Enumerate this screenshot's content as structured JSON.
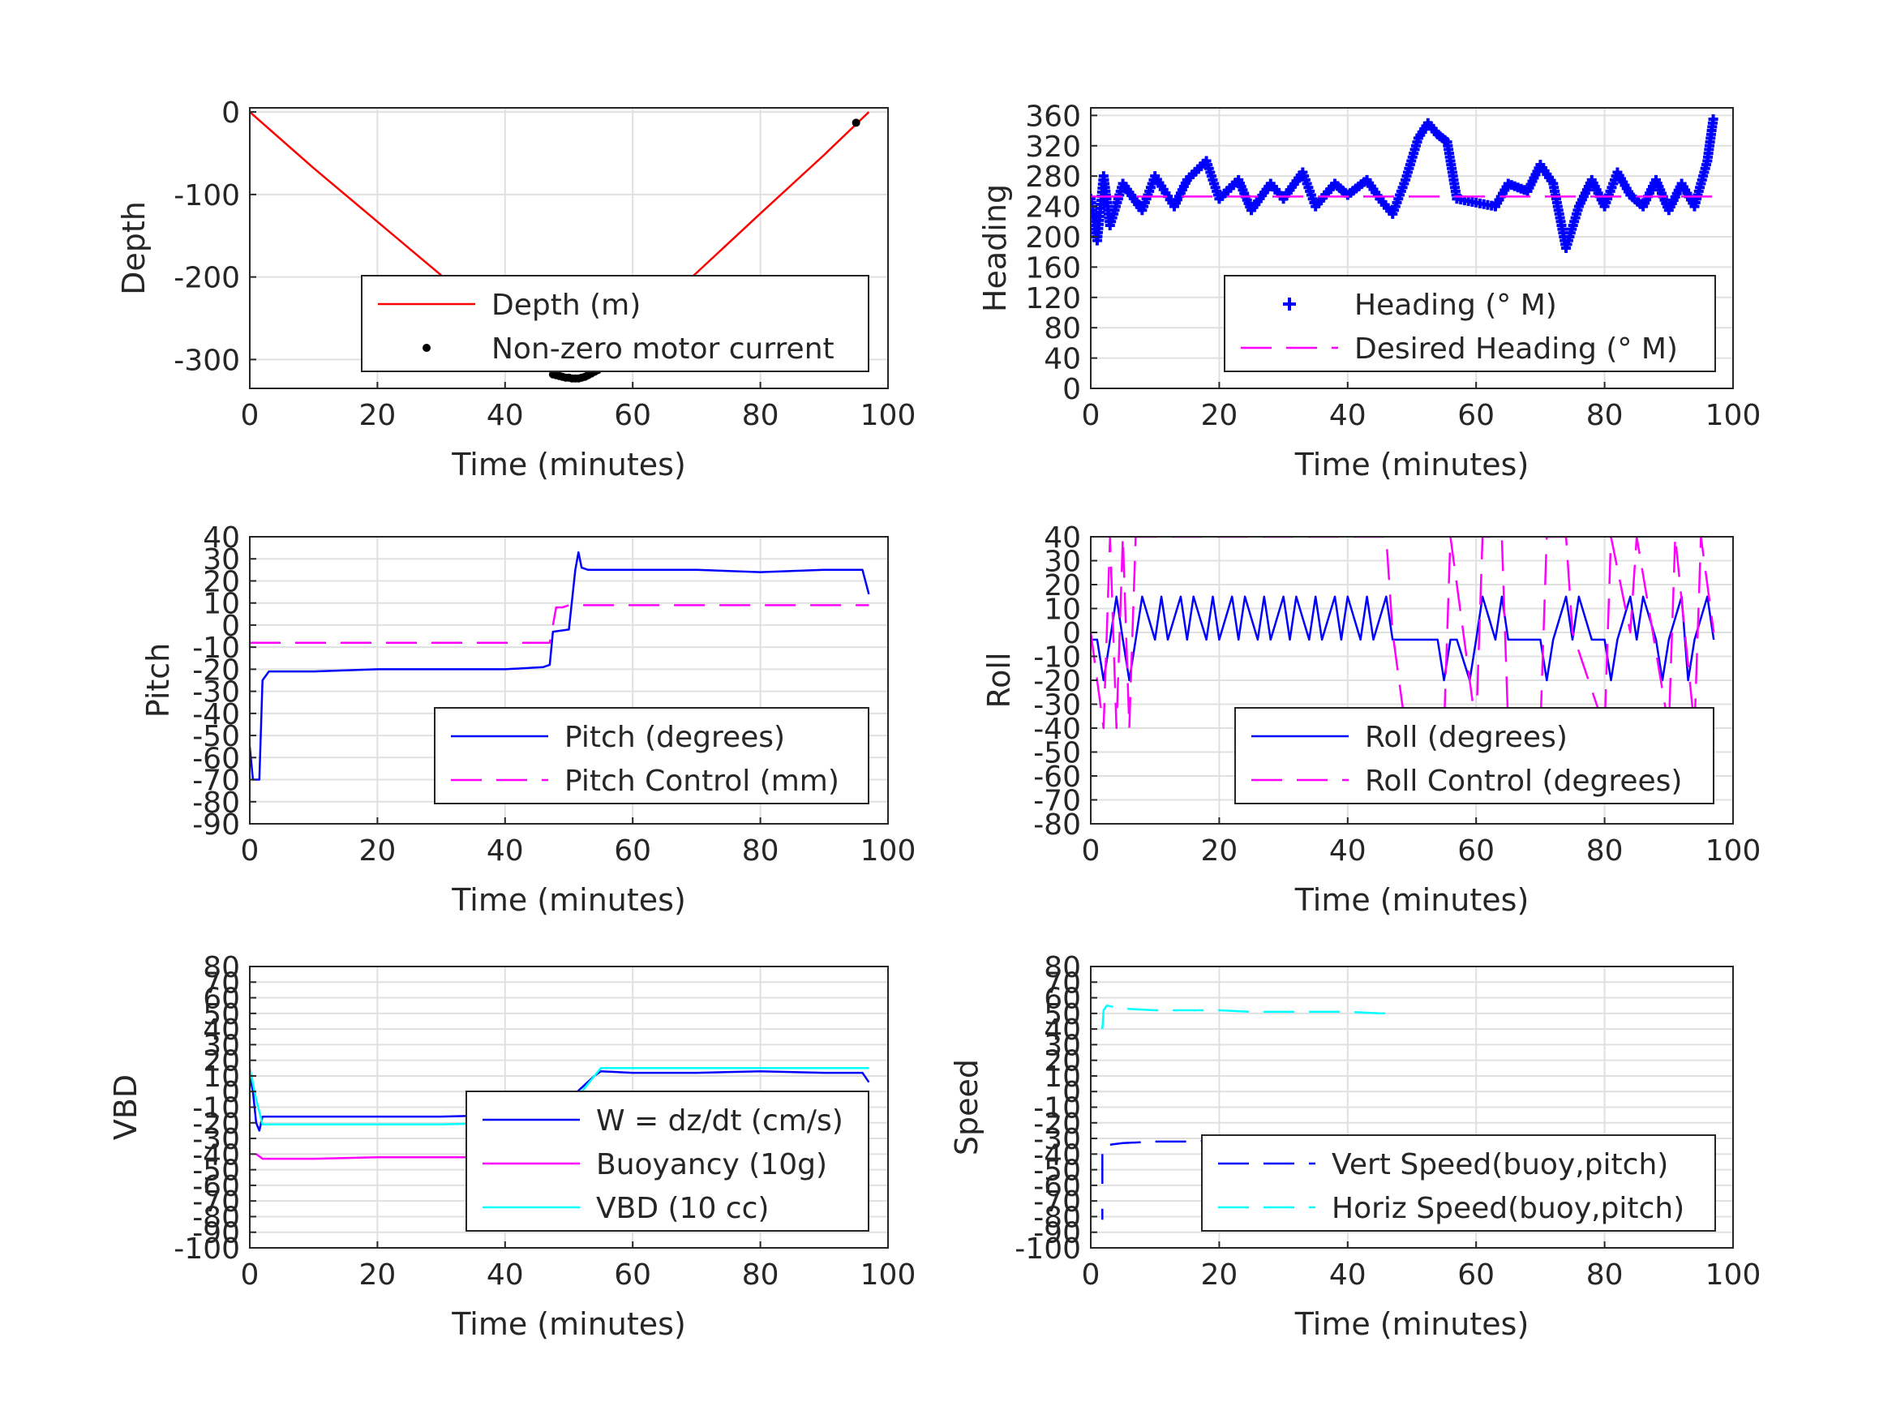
{
  "chart_data": [
    {
      "id": "depth",
      "type": "line",
      "xlabel": "Time (minutes)",
      "ylabel": "Depth",
      "xlim": [
        0,
        100
      ],
      "ylim": [
        -335,
        5
      ],
      "xticks": [
        0,
        20,
        40,
        60,
        80,
        100
      ],
      "yticks": [
        0,
        -100,
        -200,
        -300
      ],
      "grid": true,
      "legend": {
        "placement": "bottom-right",
        "entries": [
          "Depth (m)",
          "Non-zero motor current"
        ]
      },
      "series": [
        {
          "name": "Depth (m)",
          "style": "line",
          "color": "#ff0000",
          "x": [
            0,
            10,
            20,
            30,
            40,
            48,
            50,
            52,
            54,
            60,
            70,
            80,
            90,
            97
          ],
          "y": [
            0,
            -68,
            -133,
            -198,
            -262,
            -315,
            -320,
            -320,
            -312,
            -265,
            -195,
            -123,
            -52,
            0
          ]
        },
        {
          "name": "Non-zero motor current",
          "style": "dot",
          "color": "#000000",
          "x": [
            47.5,
            48,
            48.5,
            49,
            49.5,
            50,
            50.5,
            51,
            51.5,
            52,
            52.5,
            53,
            53.5,
            54,
            54.5,
            95
          ],
          "y": [
            -318,
            -319,
            -320,
            -321,
            -322,
            -322,
            -323,
            -323,
            -323,
            -322,
            -321,
            -319,
            -317,
            -315,
            -313,
            -13
          ]
        }
      ]
    },
    {
      "id": "heading",
      "type": "scatter",
      "xlabel": "Time (minutes)",
      "ylabel": "Heading",
      "xlim": [
        0,
        100
      ],
      "ylim": [
        0,
        370
      ],
      "xticks": [
        0,
        20,
        40,
        60,
        80,
        100
      ],
      "yticks": [
        0,
        40,
        80,
        120,
        160,
        200,
        240,
        280,
        320,
        360
      ],
      "grid": true,
      "legend": {
        "placement": "bottom-right",
        "entries": [
          "Heading (° M)",
          "Desired Heading (° M)"
        ]
      },
      "series": [
        {
          "name": "Heading (° M)",
          "style": "plus",
          "color": "#0000ff",
          "x": [
            0,
            1,
            2,
            3,
            5,
            8,
            10,
            13,
            15,
            18,
            20,
            23,
            25,
            28,
            30,
            33,
            35,
            38,
            40,
            43,
            45,
            47,
            49,
            51,
            52.5,
            54,
            55.5,
            57,
            60,
            63,
            65,
            68,
            70,
            72,
            74,
            76,
            78,
            80,
            82,
            84,
            86,
            88,
            90,
            92,
            94,
            96,
            97
          ],
          "y": [
            250,
            195,
            280,
            215,
            270,
            235,
            280,
            240,
            275,
            300,
            250,
            275,
            235,
            270,
            250,
            285,
            240,
            270,
            255,
            275,
            250,
            230,
            275,
            330,
            350,
            335,
            325,
            250,
            245,
            240,
            270,
            260,
            295,
            270,
            185,
            240,
            275,
            240,
            285,
            255,
            240,
            275,
            235,
            270,
            240,
            300,
            360
          ]
        },
        {
          "name": "Desired Heading (° M)",
          "style": "dash",
          "color": "#ff00ff",
          "x": [
            0,
            97
          ],
          "y": [
            253,
            253
          ]
        }
      ]
    },
    {
      "id": "pitch",
      "type": "line",
      "xlabel": "Time (minutes)",
      "ylabel": "Pitch",
      "xlim": [
        0,
        100
      ],
      "ylim": [
        -90,
        40
      ],
      "xticks": [
        0,
        20,
        40,
        60,
        80,
        100
      ],
      "yticks": [
        40,
        30,
        20,
        10,
        0,
        -10,
        -20,
        -30,
        -40,
        -50,
        -60,
        -70,
        -80,
        -90
      ],
      "grid": true,
      "legend": {
        "placement": "bottom-right",
        "entries": [
          "Pitch (degrees)",
          "Pitch Control (mm)"
        ]
      },
      "series": [
        {
          "name": "Pitch (degrees)",
          "style": "line",
          "color": "#0000ff",
          "x": [
            0,
            0.5,
            1.5,
            2,
            3,
            10,
            20,
            30,
            40,
            46,
            47,
            47.5,
            50,
            51,
            51.5,
            52,
            53,
            60,
            70,
            80,
            90,
            96,
            97
          ],
          "y": [
            -55,
            -70,
            -70,
            -25,
            -21,
            -21,
            -20,
            -20,
            -20,
            -19,
            -18,
            -3,
            -2,
            25,
            33,
            26,
            25,
            25,
            25,
            24,
            25,
            25,
            14
          ]
        },
        {
          "name": "Pitch Control (mm)",
          "style": "dash",
          "color": "#ff00ff",
          "x": [
            0,
            47,
            48,
            49,
            50,
            97
          ],
          "y": [
            -8,
            -8,
            8,
            8,
            9,
            9
          ]
        }
      ]
    },
    {
      "id": "roll",
      "type": "line",
      "xlabel": "Time (minutes)",
      "ylabel": "Roll",
      "xlim": [
        0,
        100
      ],
      "ylim": [
        -80,
        40
      ],
      "xticks": [
        0,
        20,
        40,
        60,
        80,
        100
      ],
      "yticks": [
        40,
        30,
        20,
        10,
        0,
        -10,
        -20,
        -30,
        -40,
        -50,
        -60,
        -70,
        -80
      ],
      "grid": true,
      "legend": {
        "placement": "bottom-right",
        "entries": [
          "Roll (degrees)",
          "Roll Control (degrees)"
        ]
      },
      "series": [
        {
          "name": "Roll (degrees)",
          "style": "line",
          "color": "#0000ff",
          "x": [
            0,
            1,
            2,
            3,
            4,
            5,
            6,
            7,
            8,
            10,
            11,
            12,
            14,
            15,
            16,
            18,
            19,
            20,
            22,
            23,
            24,
            26,
            27,
            28,
            30,
            31,
            32,
            34,
            35,
            36,
            38,
            39,
            40,
            42,
            43,
            44,
            46,
            47,
            48,
            50,
            54,
            55,
            56,
            57,
            59,
            60,
            61,
            63,
            64,
            65,
            68,
            70,
            71,
            72,
            74,
            75,
            76,
            78,
            80,
            81,
            82,
            84,
            85,
            86,
            88,
            89,
            90,
            92,
            93,
            94,
            96,
            97
          ],
          "y": [
            -3,
            -3,
            -20,
            -3,
            15,
            -3,
            -20,
            -3,
            15,
            -3,
            15,
            -3,
            15,
            -3,
            15,
            -3,
            15,
            -3,
            15,
            -3,
            15,
            -3,
            15,
            -3,
            15,
            -3,
            15,
            -3,
            15,
            -3,
            15,
            -3,
            15,
            -3,
            15,
            -3,
            15,
            -3,
            -3,
            -3,
            -3,
            -20,
            -3,
            -3,
            -20,
            -3,
            15,
            -3,
            15,
            -3,
            -3,
            -3,
            -20,
            -3,
            15,
            -3,
            15,
            -3,
            -3,
            -20,
            -3,
            15,
            -3,
            15,
            -3,
            -20,
            -3,
            15,
            -20,
            -3,
            15,
            -3
          ]
        },
        {
          "name": "Roll Control (degrees)",
          "style": "dash",
          "color": "#ff00ff",
          "x": [
            0,
            2,
            3,
            4,
            5,
            6,
            7,
            10,
            11,
            14,
            15,
            18,
            19,
            22,
            23,
            26,
            27,
            30,
            31,
            34,
            35,
            38,
            39,
            42,
            43,
            46,
            47,
            49,
            50,
            55,
            56,
            60,
            61,
            64,
            65,
            70,
            71,
            74,
            75,
            80,
            81,
            84,
            85,
            90,
            91,
            94,
            95,
            97
          ],
          "y": [
            0,
            -40,
            40,
            -40,
            40,
            -40,
            40,
            40,
            40,
            40,
            40,
            40,
            40,
            40,
            40,
            40,
            40,
            40,
            40,
            40,
            40,
            40,
            40,
            40,
            40,
            40,
            0,
            -40,
            -40,
            -40,
            40,
            -40,
            40,
            40,
            -40,
            -40,
            40,
            40,
            0,
            -40,
            40,
            0,
            40,
            -40,
            40,
            -40,
            40,
            0
          ]
        }
      ]
    },
    {
      "id": "vbd",
      "type": "line",
      "xlabel": "Time (minutes)",
      "ylabel": "VBD",
      "xlim": [
        0,
        100
      ],
      "ylim": [
        -100,
        80
      ],
      "xticks": [
        0,
        20,
        40,
        60,
        80,
        100
      ],
      "yticks": [
        80,
        70,
        60,
        50,
        40,
        30,
        20,
        10,
        0,
        -10,
        -20,
        -30,
        -40,
        -50,
        -60,
        -70,
        -80,
        -90,
        -100
      ],
      "grid": true,
      "legend": {
        "placement": "bottom-right",
        "entries": [
          "W = dz/dt (cm/s)",
          "Buoyancy (10g)",
          "VBD (10 cc)"
        ]
      },
      "series": [
        {
          "name": "W = dz/dt (cm/s)",
          "style": "line",
          "color": "#0000ff",
          "x": [
            0,
            0.5,
            1,
            1.5,
            2,
            10,
            20,
            30,
            40,
            47,
            48,
            50,
            54,
            55,
            60,
            70,
            80,
            90,
            96,
            97
          ],
          "y": [
            10,
            0,
            -20,
            -25,
            -16,
            -16,
            -16,
            -16,
            -15,
            -15,
            -15,
            -5,
            10,
            13,
            12,
            12,
            13,
            12,
            12,
            6
          ]
        },
        {
          "name": "Buoyancy (10g)",
          "style": "line",
          "color": "#ff00ff",
          "x": [
            1,
            2,
            10,
            20,
            30,
            40,
            48
          ],
          "y": [
            -40,
            -43,
            -43,
            -42,
            -42,
            -42,
            -42
          ]
        },
        {
          "name": "VBD (10 cc)",
          "style": "line",
          "color": "#00ffff",
          "x": [
            0,
            1,
            2,
            10,
            20,
            30,
            40,
            47,
            48,
            55,
            60,
            70,
            80,
            90,
            97
          ],
          "y": [
            15,
            -5,
            -21,
            -21,
            -21,
            -21,
            -20,
            -20,
            -20,
            15,
            15,
            15,
            15,
            15,
            15
          ]
        }
      ]
    },
    {
      "id": "speed",
      "type": "line",
      "xlabel": "Time (minutes)",
      "ylabel": "Speed",
      "xlim": [
        0,
        100
      ],
      "ylim": [
        -100,
        80
      ],
      "xticks": [
        0,
        20,
        40,
        60,
        80,
        100
      ],
      "yticks": [
        80,
        70,
        60,
        50,
        40,
        30,
        20,
        10,
        0,
        -10,
        -20,
        -30,
        -40,
        -50,
        -60,
        -70,
        -80,
        -90,
        -100
      ],
      "grid": true,
      "legend": {
        "placement": "bottom-right",
        "entries": [
          "Vert Speed(buoy,pitch)",
          "Horiz Speed(buoy,pitch)"
        ]
      },
      "series": [
        {
          "name": "Vert Speed(buoy,pitch)",
          "style": "dash",
          "color": "#0000ff",
          "segments": [
            {
              "x": [
                1.8,
                1.8
              ],
              "y": [
                -40,
                -59
              ]
            },
            {
              "x": [
                1.8,
                1.8
              ],
              "y": [
                -75,
                -82
              ]
            },
            {
              "x": [
                3,
                5,
                10,
                15,
                20,
                25,
                30,
                35,
                40,
                45,
                48
              ],
              "y": [
                -34,
                -33,
                -32,
                -32,
                -31,
                -31,
                -31,
                -30,
                -30,
                -29,
                -29
              ]
            }
          ]
        },
        {
          "name": "Horiz Speed(buoy,pitch)",
          "style": "dash",
          "color": "#00ffff",
          "segments": [
            {
              "x": [
                1.8,
                2,
                2.5,
                5,
                10,
                15,
                20,
                25,
                30,
                35,
                40,
                45,
                48
              ],
              "y": [
                40,
                52,
                55,
                53,
                52,
                52,
                52,
                51,
                51,
                51,
                51,
                50,
                50
              ]
            }
          ]
        }
      ]
    }
  ]
}
